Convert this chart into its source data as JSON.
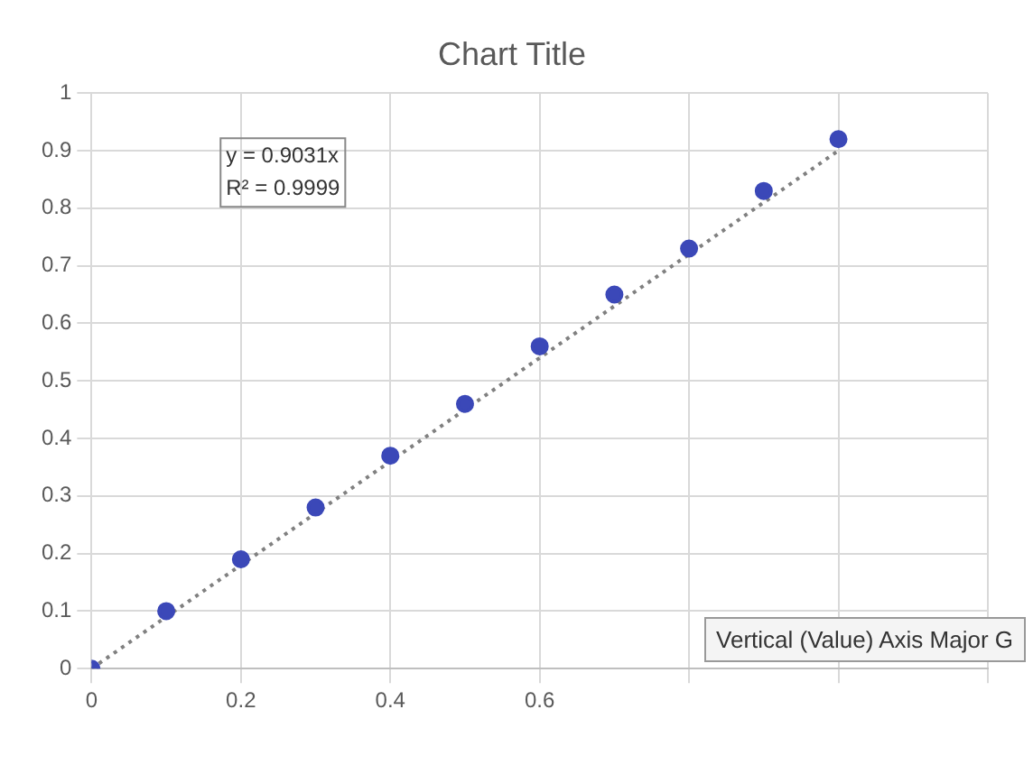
{
  "chart_data": {
    "type": "scatter",
    "title": "Chart Title",
    "x": [
      0,
      0.1,
      0.2,
      0.3,
      0.4,
      0.5,
      0.6,
      0.7,
      0.8,
      0.9,
      1
    ],
    "series": [
      {
        "color": "#3b48b8",
        "values": [
          0,
          0.1,
          0.19,
          0.28,
          0.37,
          0.46,
          0.56,
          0.65,
          0.73,
          0.83,
          0.92
        ],
        "marker": "circle"
      },
      {
        "type": "line",
        "color": "#808080",
        "x": [
          0,
          1
        ],
        "values": [
          0,
          0.9
        ],
        "line_style": "dotted",
        "marker": "none"
      }
    ],
    "xlim": [
      0,
      1.2
    ],
    "xticks": [
      0,
      0.2,
      0.4,
      0.6,
      {
        "value": 0.8,
        "label": null
      },
      {
        "value": 1,
        "label": null
      },
      {
        "value": 1.2,
        "label": null
      }
    ],
    "ylim": [
      0,
      1
    ],
    "yticks": [
      0,
      0.1,
      0.2,
      0.3,
      0.4,
      0.5,
      0.6,
      0.7,
      0.8,
      0.9,
      1
    ],
    "grid": true,
    "legend": false,
    "annotations": [
      "y = 0.9031x",
      "R² = 0.9999",
      "Vertical (Value) Axis Major G"
    ]
  }
}
